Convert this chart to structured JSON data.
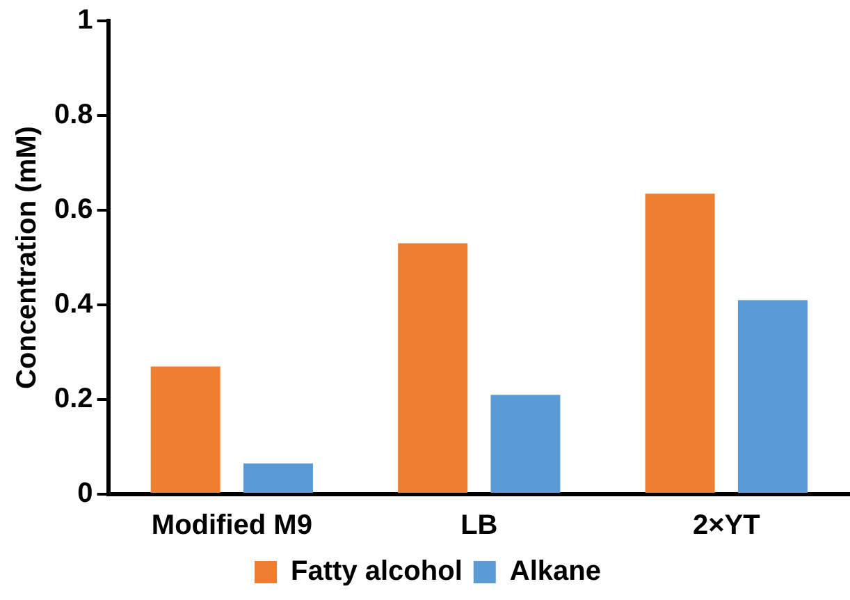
{
  "chart_data": {
    "type": "bar",
    "ylabel": "Concentration (mM)",
    "categories": [
      "Modified M9",
      "LB",
      "2×YT"
    ],
    "series": [
      {
        "name": "Fatty alcohol",
        "color": "#ed7d31",
        "values": [
          0.27,
          0.53,
          0.635
        ]
      },
      {
        "name": "Alkane",
        "color": "#5b9bd5",
        "values": [
          0.065,
          0.21,
          0.41
        ]
      }
    ],
    "ylim": [
      0,
      1
    ],
    "yticks": [
      0,
      0.2,
      0.4,
      0.6,
      0.8,
      1
    ],
    "grid": false,
    "legend": "bottom"
  }
}
